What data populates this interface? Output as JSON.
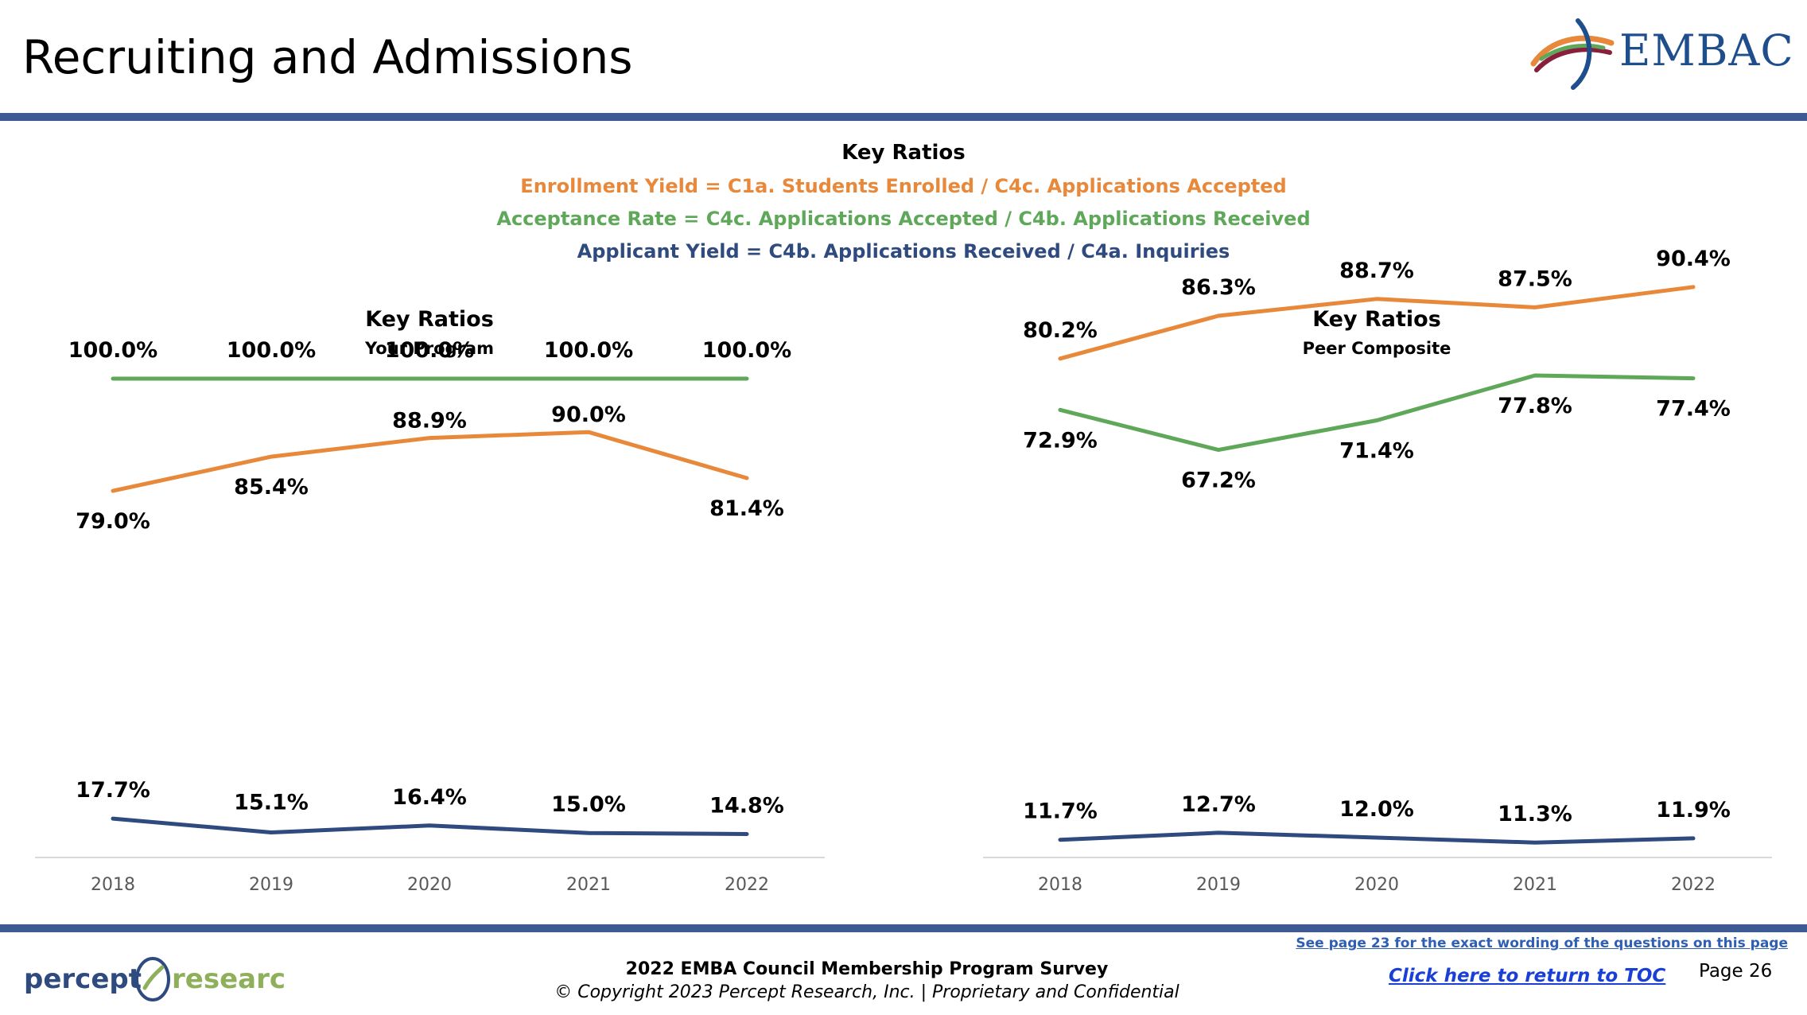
{
  "page": {
    "title": "Recruiting and Admissions",
    "logo_text": "EMBAC"
  },
  "legend": {
    "heading": "Key Ratios",
    "enrollment_yield": "Enrollment Yield = C1a. Students Enrolled / C4c. Applications Accepted",
    "acceptance_rate": "Acceptance Rate = C4c. Applications Accepted / C4b. Applications Received",
    "applicant_yield": "Applicant Yield = C4b. Applications Received / C4a. Inquiries"
  },
  "colors": {
    "enrollment_yield": "#e8883a",
    "acceptance_rate": "#5fa85a",
    "applicant_yield": "#2e4a7e",
    "bar": "#3e5a94",
    "axis_text": "#595959"
  },
  "chart_data": [
    {
      "type": "line",
      "title": "Key Ratios",
      "subtitle": "Your Program",
      "x": [
        "2018",
        "2019",
        "2020",
        "2021",
        "2022"
      ],
      "ylim": [
        0,
        105
      ],
      "grid": false,
      "series": [
        {
          "name": "Acceptance Rate",
          "color": "#5fa85a",
          "values": [
            100.0,
            100.0,
            100.0,
            100.0,
            100.0
          ],
          "labels": [
            "100.0%",
            "100.0%",
            "100.0%",
            "100.0%",
            "100.0%"
          ]
        },
        {
          "name": "Enrollment Yield",
          "color": "#e8883a",
          "values": [
            79.0,
            85.4,
            88.9,
            90.0,
            81.4
          ],
          "labels": [
            "79.0%",
            "85.4%",
            "88.9%",
            "90.0%",
            "81.4%"
          ]
        },
        {
          "name": "Applicant Yield",
          "color": "#2e4a7e",
          "values": [
            17.7,
            15.1,
            16.4,
            15.0,
            14.8
          ],
          "labels": [
            "17.7%",
            "15.1%",
            "16.4%",
            "15.0%",
            "14.8%"
          ]
        }
      ]
    },
    {
      "type": "line",
      "title": "Key Ratios",
      "subtitle": "Peer Composite",
      "x": [
        "2018",
        "2019",
        "2020",
        "2021",
        "2022"
      ],
      "ylim": [
        0,
        105
      ],
      "grid": false,
      "series": [
        {
          "name": "Enrollment Yield",
          "color": "#e8883a",
          "values": [
            80.2,
            86.3,
            88.7,
            87.5,
            90.4
          ],
          "labels": [
            "80.2%",
            "86.3%",
            "88.7%",
            "87.5%",
            "90.4%"
          ]
        },
        {
          "name": "Acceptance Rate",
          "color": "#5fa85a",
          "values": [
            72.9,
            67.2,
            71.4,
            77.8,
            77.4
          ],
          "labels": [
            "72.9%",
            "67.2%",
            "71.4%",
            "77.8%",
            "77.4%"
          ]
        },
        {
          "name": "Applicant Yield",
          "color": "#2e4a7e",
          "values": [
            11.7,
            12.7,
            12.0,
            11.3,
            11.9
          ],
          "labels": [
            "11.7%",
            "12.7%",
            "12.0%",
            "11.3%",
            "11.9%"
          ]
        }
      ]
    }
  ],
  "footer": {
    "company_logo": "percept research",
    "survey": "2022 EMBA Council Membership Program Survey",
    "copyright": "© Copyright 2023 Percept Research, Inc. | Proprietary and Confidential",
    "see_page": "See page 23 for the exact wording of the questions on this page",
    "toc_link": "Click here to return to TOC",
    "page_number": "Page 26"
  }
}
